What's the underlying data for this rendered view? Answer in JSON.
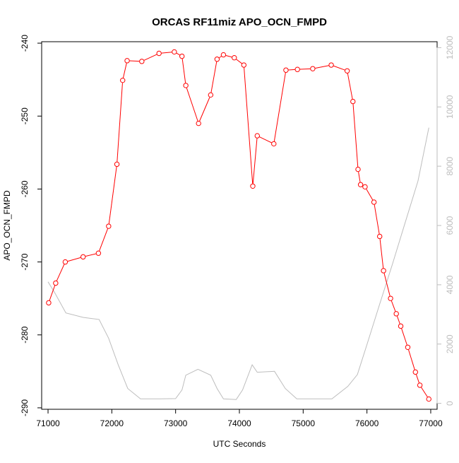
{
  "chart_data": {
    "type": "line",
    "title": "ORCAS RF11miz APO_OCN_FMPD",
    "xlabel": "UTC Seconds",
    "ylabel": "APO_OCN_FMPD",
    "xlim": [
      70900,
      77100
    ],
    "ylim": [
      -290.2,
      -239.8
    ],
    "y2lim": [
      -200,
      12200
    ],
    "x_ticks": [
      71000,
      72000,
      73000,
      74000,
      75000,
      76000,
      77000
    ],
    "y_ticks": [
      -240,
      -250,
      -260,
      -270,
      -280,
      -290
    ],
    "y2_ticks": [
      0,
      2000,
      4000,
      6000,
      8000,
      10000,
      12000
    ],
    "grid": false,
    "series": [
      {
        "color": "#ff0000",
        "axis": "left",
        "marker": "open-circle",
        "x": [
          71010,
          71120,
          71270,
          71550,
          71790,
          71950,
          72080,
          72170,
          72240,
          72470,
          72740,
          72980,
          73100,
          73160,
          73360,
          73550,
          73650,
          73750,
          73920,
          74070,
          74210,
          74280,
          74540,
          74730,
          74910,
          75150,
          75440,
          75690,
          75780,
          75860,
          75900,
          75970,
          76110,
          76200,
          76260,
          76370,
          76460,
          76530,
          76640,
          76760,
          76830,
          76970
        ],
        "y": [
          -275.6,
          -272.9,
          -270.0,
          -269.3,
          -268.8,
          -265.1,
          -256.6,
          -245.1,
          -242.4,
          -242.5,
          -241.4,
          -241.2,
          -241.8,
          -245.8,
          -251.0,
          -247.1,
          -242.2,
          -241.6,
          -242.0,
          -243.0,
          -259.6,
          -252.7,
          -253.8,
          -243.7,
          -243.6,
          -243.5,
          -243.0,
          -243.8,
          -248.0,
          -257.3,
          -259.4,
          -259.7,
          -261.8,
          -266.5,
          -271.2,
          -275.0,
          -277.1,
          -278.8,
          -281.7,
          -285.1,
          -286.9,
          -288.8
        ]
      },
      {
        "color": "#bdbdbd",
        "axis": "right",
        "marker": "none",
        "x": [
          71000,
          71100,
          71280,
          71550,
          71800,
          71950,
          72100,
          72250,
          72450,
          72750,
          73000,
          73100,
          73160,
          73350,
          73550,
          73650,
          73750,
          73950,
          74050,
          74200,
          74280,
          74550,
          74720,
          74900,
          75150,
          75450,
          75700,
          75850,
          76000,
          76200,
          76400,
          76600,
          76800,
          76970
        ],
        "y": [
          4100,
          3750,
          3050,
          2900,
          2830,
          2200,
          1300,
          500,
          150,
          150,
          160,
          450,
          950,
          1150,
          950,
          500,
          150,
          130,
          450,
          1300,
          1050,
          1080,
          500,
          150,
          150,
          150,
          570,
          970,
          1980,
          3350,
          4700,
          6100,
          7500,
          9300
        ]
      }
    ]
  }
}
